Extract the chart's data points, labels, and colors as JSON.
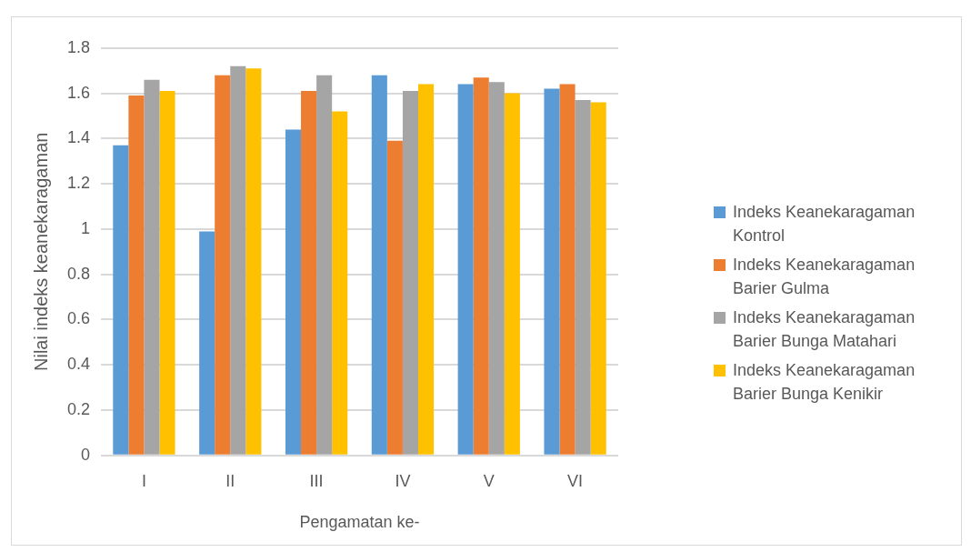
{
  "chart_data": {
    "type": "bar",
    "xlabel": "Pengamatan ke-",
    "ylabel": "Nilai indeks keanekaragaman",
    "categories": [
      "I",
      "II",
      "III",
      "IV",
      "V",
      "VI"
    ],
    "series": [
      {
        "name": "Indeks Keanekaragaman Kontrol",
        "color": "#5b9bd5",
        "values": [
          1.37,
          0.99,
          1.44,
          1.68,
          1.64,
          1.62
        ]
      },
      {
        "name": "Indeks Keanekaragaman Barier Gulma",
        "color": "#ed7d31",
        "values": [
          1.59,
          1.68,
          1.61,
          1.39,
          1.67,
          1.64
        ]
      },
      {
        "name": "Indeks Keanekaragaman Barier Bunga Matahari",
        "color": "#a5a5a5",
        "values": [
          1.66,
          1.72,
          1.68,
          1.61,
          1.65,
          1.57
        ]
      },
      {
        "name": "Indeks Keanekaragaman Barier Bunga Kenikir",
        "color": "#ffc000",
        "values": [
          1.61,
          1.71,
          1.52,
          1.64,
          1.6,
          1.56
        ]
      }
    ],
    "ylim": [
      0,
      1.8
    ],
    "yticks": [
      0,
      0.2,
      0.4,
      0.6,
      0.8,
      1,
      1.2,
      1.4,
      1.6,
      1.8
    ],
    "grid": "y",
    "legend": "right"
  }
}
